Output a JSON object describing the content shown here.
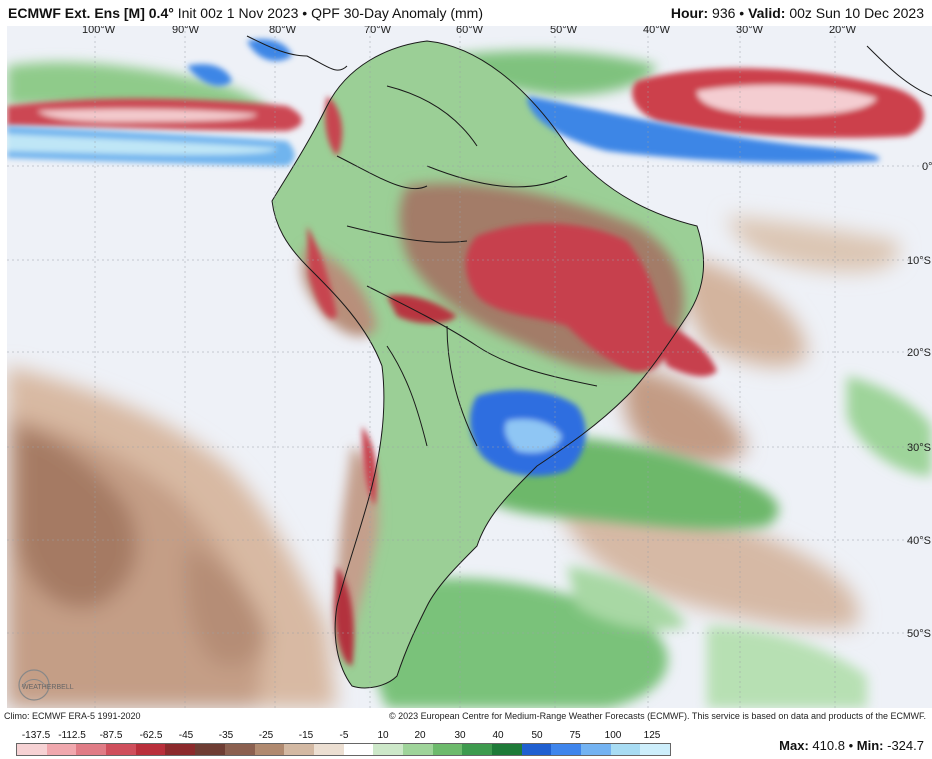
{
  "header": {
    "model": "ECMWF Ext. Ens [M] 0.4°",
    "init": "Init 00z 1 Nov 2023",
    "sep": "•",
    "product": "QPF 30-Day Anomaly (mm)",
    "hour_label": "Hour:",
    "hour_value": "936",
    "valid_label": "Valid:",
    "valid_value": "00z Sun 10 Dec 2023"
  },
  "map": {
    "lon_labels": [
      "100°W",
      "90°W",
      "80°W",
      "70°W",
      "60°W",
      "50°W",
      "40°W",
      "30°W",
      "20°W"
    ],
    "lat_labels": [
      "0°",
      "10°S",
      "20°S",
      "30°S",
      "40°S",
      "50°S"
    ],
    "logo_text": "WEATHERBELL"
  },
  "footer": {
    "climo": "Climo: ECMWF ERA-5 1991-2020",
    "copyright": "© 2023 European Centre for Medium-Range Weather Forecasts (ECMWF). This service is based on data and products of the ECMWF."
  },
  "colorbar": {
    "ticks": [
      "-137.5",
      "-112.5",
      "-87.5",
      "-62.5",
      "-45",
      "-35",
      "-25",
      "-15",
      "-5",
      "10",
      "20",
      "30",
      "40",
      "50",
      "75",
      "100",
      "125"
    ],
    "colors": [
      "#f6d2d4",
      "#f0a8ae",
      "#e07c86",
      "#cf4f5c",
      "#b92f3b",
      "#8c2a2c",
      "#6e3d34",
      "#8b6050",
      "#b08a70",
      "#d3b9a3",
      "#ecdfd2",
      "#ffffff",
      "#cde8c9",
      "#9fd49a",
      "#6dba6c",
      "#3e9a4e",
      "#1e7a38",
      "#1f5fd0",
      "#3f85ec",
      "#74b3f2",
      "#a8dcf3",
      "#cdeefb"
    ]
  },
  "stats": {
    "max_label": "Max:",
    "max_value": "410.8",
    "sep": "•",
    "min_label": "Min:",
    "min_value": "-324.7"
  }
}
